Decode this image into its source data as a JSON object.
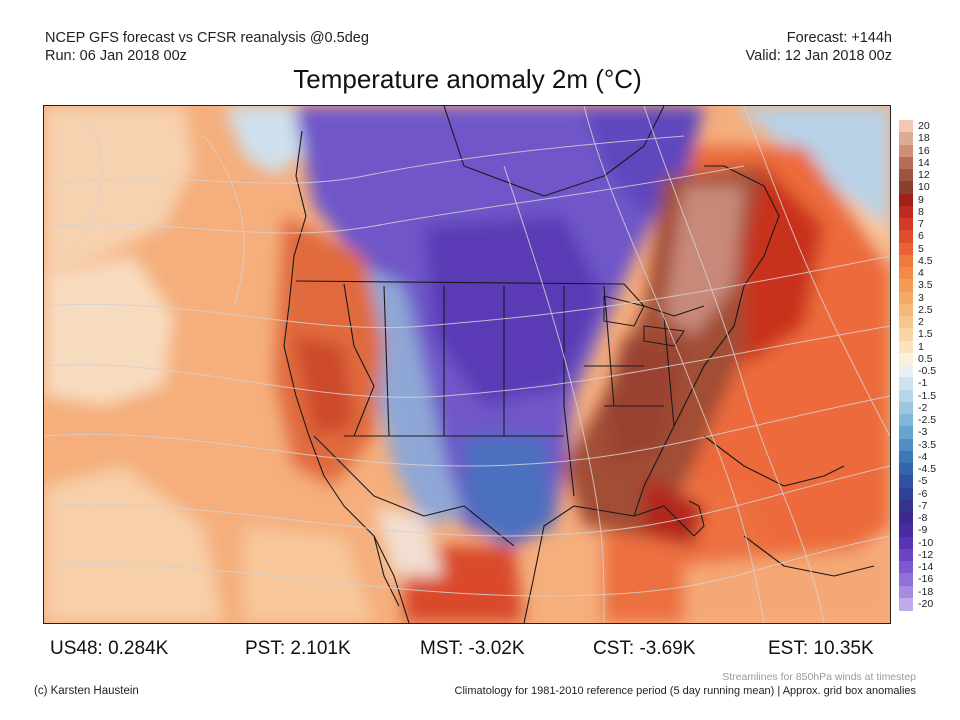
{
  "header": {
    "model_line": "NCEP GFS forecast vs CFSR reanalysis @0.5deg",
    "run_line": "Run: 06 Jan 2018 00z",
    "forecast_line": "Forecast: +144h",
    "valid_line": "Valid: 12 Jan 2018 00z"
  },
  "title": "Temperature anomaly 2m (°C)",
  "colorbar": {
    "labels": [
      "20",
      "18",
      "16",
      "14",
      "12",
      "10",
      "9",
      "8",
      "7",
      "6",
      "5",
      "4.5",
      "4",
      "3.5",
      "3",
      "2.5",
      "2",
      "1.5",
      "1",
      "0.5",
      "-0.5",
      "-1",
      "-1.5",
      "-2",
      "-2.5",
      "-3",
      "-3.5",
      "-4",
      "-4.5",
      "-5",
      "-6",
      "-7",
      "-8",
      "-9",
      "-10",
      "-12",
      "-14",
      "-16",
      "-18",
      "-20"
    ],
    "colors": [
      "#f2c7b3",
      "#dfaa92",
      "#cf8f74",
      "#b56e55",
      "#9c5540",
      "#8a3f2e",
      "#a3201a",
      "#bd2a1e",
      "#d23a26",
      "#e04d2d",
      "#e86234",
      "#ef7a3d",
      "#f48b44",
      "#f49b54",
      "#f5aa63",
      "#f6b875",
      "#f7c68a",
      "#f9d5a2",
      "#fbe3bd",
      "#fcf0dc",
      "#e6f0f6",
      "#cfe3ef",
      "#b7d5e8",
      "#9cc6df",
      "#80b6d7",
      "#66a4cd",
      "#4f8fc2",
      "#3d78b6",
      "#3464ac",
      "#2f52a3",
      "#2e4298",
      "#34348f",
      "#3d2a91",
      "#4a2aa0",
      "#5a33b4",
      "#6b43c4",
      "#7d58d0",
      "#9170da",
      "#a78be2",
      "#c0aced"
    ]
  },
  "regional_stats": [
    {
      "label": "US48",
      "value": "0.284K"
    },
    {
      "label": "PST",
      "value": "2.101K"
    },
    {
      "label": "MST",
      "value": "-3.02K"
    },
    {
      "label": "CST",
      "value": "-3.69K"
    },
    {
      "label": "EST",
      "value": "10.35K"
    }
  ],
  "footer": {
    "streamline_note": "Streamlines for 850hPa winds at timestep",
    "credit": "(c) Karsten Haustein",
    "climatology_note": "Climatology for 1981-2010 reference period (5 day running mean) | Approx. grid box anomalies"
  }
}
